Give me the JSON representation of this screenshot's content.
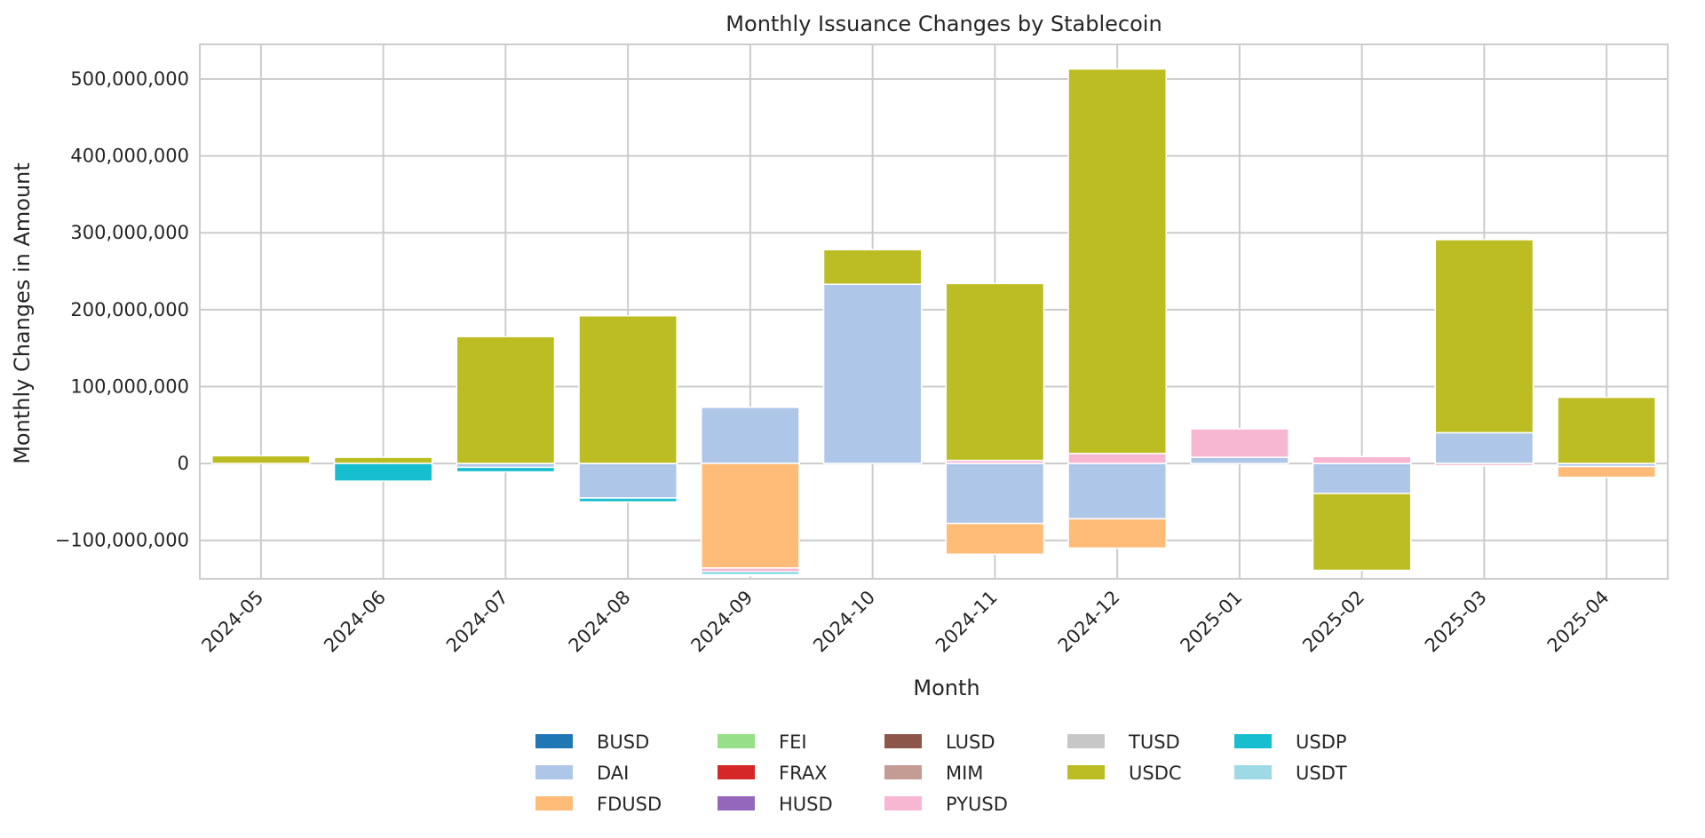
{
  "chart_data": {
    "type": "bar",
    "stacked": true,
    "title": "Monthly Issuance Changes by Stablecoin",
    "xlabel": "Month",
    "ylabel": "Monthly Changes in Amount",
    "ylim": [
      -150000000,
      545000000
    ],
    "yticks": [
      -100000000,
      0,
      100000000,
      200000000,
      300000000,
      400000000,
      500000000
    ],
    "ytick_labels": [
      "−100,000,000",
      "0",
      "100,000,000",
      "200,000,000",
      "300,000,000",
      "400,000,000",
      "500,000,000"
    ],
    "grid": true,
    "legend_position": "bottom",
    "categories": [
      "2024-05",
      "2024-06",
      "2024-07",
      "2024-08",
      "2024-09",
      "2024-10",
      "2024-11",
      "2024-12",
      "2025-01",
      "2025-02",
      "2025-03",
      "2025-04"
    ],
    "series": [
      {
        "name": "BUSD",
        "color": "#1f77b4",
        "values": [
          0,
          0,
          0,
          0,
          0,
          0,
          0,
          0,
          0,
          0,
          0,
          0
        ]
      },
      {
        "name": "DAI",
        "color": "#aec7e8",
        "values": [
          0,
          0,
          -5000000,
          -45000000,
          73000000,
          233000000,
          -78000000,
          -72000000,
          8000000,
          -39000000,
          40000000,
          -4000000
        ]
      },
      {
        "name": "FDUSD",
        "color": "#ffbb78",
        "values": [
          0,
          0,
          0,
          0,
          -136000000,
          0,
          -40000000,
          -38000000,
          0,
          0,
          0,
          -14000000
        ]
      },
      {
        "name": "FEI",
        "color": "#98df8a",
        "values": [
          0,
          0,
          0,
          0,
          0,
          0,
          0,
          0,
          0,
          0,
          0,
          0
        ]
      },
      {
        "name": "FRAX",
        "color": "#d62728",
        "values": [
          0,
          0,
          0,
          0,
          0,
          0,
          0,
          0,
          0,
          0,
          0,
          0
        ]
      },
      {
        "name": "HUSD",
        "color": "#9467bd",
        "values": [
          0,
          0,
          0,
          0,
          0,
          0,
          0,
          0,
          0,
          0,
          0,
          0
        ]
      },
      {
        "name": "LUSD",
        "color": "#8c564b",
        "values": [
          0,
          0,
          0,
          0,
          0,
          0,
          0,
          0,
          0,
          0,
          0,
          0
        ]
      },
      {
        "name": "MIM",
        "color": "#c49c94",
        "values": [
          0,
          0,
          0,
          0,
          0,
          0,
          0,
          0,
          0,
          0,
          0,
          0
        ]
      },
      {
        "name": "PYUSD",
        "color": "#f7b6d2",
        "values": [
          0,
          0,
          0,
          0,
          -5000000,
          0,
          4000000,
          13000000,
          37000000,
          9000000,
          -3000000,
          0
        ]
      },
      {
        "name": "TUSD",
        "color": "#c7c7c7",
        "values": [
          0,
          0,
          0,
          0,
          0,
          0,
          0,
          0,
          0,
          0,
          0,
          0
        ]
      },
      {
        "name": "USDC",
        "color": "#bcbd22",
        "values": [
          10000000,
          8000000,
          165000000,
          192000000,
          0,
          45000000,
          230000000,
          500000000,
          0,
          -100000000,
          251000000,
          86000000
        ]
      },
      {
        "name": "USDP",
        "color": "#17becf",
        "values": [
          0,
          -23000000,
          -6000000,
          -5000000,
          -3000000,
          0,
          0,
          0,
          0,
          0,
          0,
          0
        ]
      },
      {
        "name": "USDT",
        "color": "#9edae5",
        "values": [
          0,
          0,
          0,
          0,
          -2000000,
          0,
          0,
          0,
          0,
          0,
          0,
          0
        ]
      }
    ],
    "legend_columns": [
      [
        "BUSD",
        "DAI",
        "FDUSD"
      ],
      [
        "FEI",
        "FRAX",
        "HUSD"
      ],
      [
        "LUSD",
        "MIM",
        "PYUSD"
      ],
      [
        "TUSD",
        "USDC"
      ],
      [
        "USDP",
        "USDT"
      ]
    ]
  }
}
